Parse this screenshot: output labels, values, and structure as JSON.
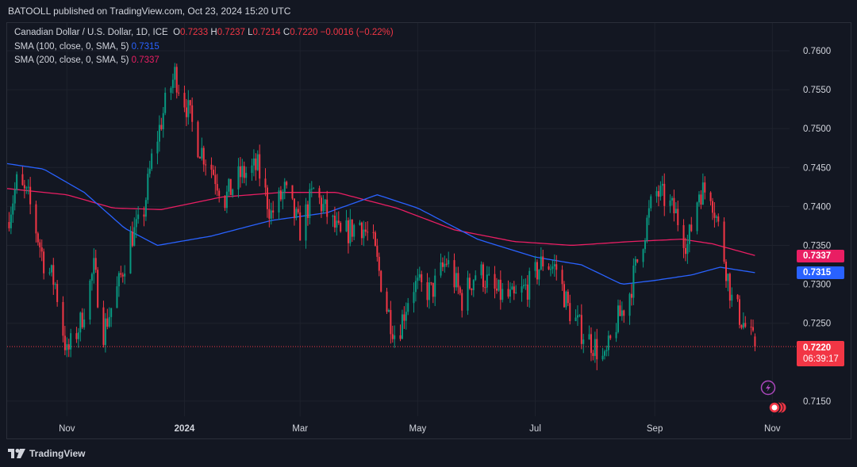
{
  "header": {
    "publisher": "BATOOLL published on TradingView.com, Oct 23, 2024 15:20 UTC"
  },
  "footer": {
    "brand": "TradingView"
  },
  "legend": {
    "symbol": "Canadian Dollar / U.S. Dollar, 1D, ICE",
    "o_label": "O",
    "o": "0.7233",
    "h_label": "H",
    "h": "0.7237",
    "l_label": "L",
    "l": "0.7214",
    "c_label": "C",
    "c": "0.7220",
    "change": "−0.0016 (−0.22%)",
    "sma100_label": "SMA (100, close, 0, SMA, 5)",
    "sma100_value": "0.7315",
    "sma200_label": "SMA (200, close, 0, SMA, 5)",
    "sma200_value": "0.7337"
  },
  "price_tags": {
    "sma200": "0.7337",
    "sma100": "0.7315",
    "last": "0.7220",
    "countdown": "06:39:17"
  },
  "colors": {
    "up": "#089981",
    "down": "#f23645",
    "sma100": "#2962ff",
    "sma200": "#e91e63",
    "background": "#131722",
    "grid": "#1e222d",
    "text": "#d1d4dc"
  },
  "chart_data": {
    "type": "candlestick",
    "title": "Canadian Dollar / U.S. Dollar, 1D, ICE",
    "x_ticks": [
      "Nov",
      "2024",
      "Mar",
      "May",
      "Jul",
      "Sep",
      "Nov"
    ],
    "y_ticks": [
      "0.7600",
      "0.7550",
      "0.7500",
      "0.7450",
      "0.7400",
      "0.7350",
      "0.7300",
      "0.7250",
      "0.7150"
    ],
    "ylim": [
      0.714,
      0.764
    ],
    "grid": true,
    "last_close": 0.722,
    "close_path": [
      {
        "d": "2023-10-01",
        "v": 0.738
      },
      {
        "d": "2023-10-06",
        "v": 0.743
      },
      {
        "d": "2023-10-12",
        "v": 0.741
      },
      {
        "d": "2023-10-20",
        "v": 0.733
      },
      {
        "d": "2023-10-26",
        "v": 0.73
      },
      {
        "d": "2023-11-01",
        "v": 0.721
      },
      {
        "d": "2023-11-08",
        "v": 0.725
      },
      {
        "d": "2023-11-15",
        "v": 0.732
      },
      {
        "d": "2023-11-20",
        "v": 0.724
      },
      {
        "d": "2023-11-28",
        "v": 0.73
      },
      {
        "d": "2023-12-04",
        "v": 0.736
      },
      {
        "d": "2023-12-10",
        "v": 0.738
      },
      {
        "d": "2023-12-15",
        "v": 0.746
      },
      {
        "d": "2023-12-22",
        "v": 0.753
      },
      {
        "d": "2023-12-27",
        "v": 0.757
      },
      {
        "d": "2024-01-02",
        "v": 0.753
      },
      {
        "d": "2024-01-08",
        "v": 0.748
      },
      {
        "d": "2024-01-15",
        "v": 0.745
      },
      {
        "d": "2024-01-22",
        "v": 0.741
      },
      {
        "d": "2024-01-30",
        "v": 0.744
      },
      {
        "d": "2024-02-08",
        "v": 0.745
      },
      {
        "d": "2024-02-15",
        "v": 0.739
      },
      {
        "d": "2024-02-22",
        "v": 0.742
      },
      {
        "d": "2024-03-01",
        "v": 0.737
      },
      {
        "d": "2024-03-08",
        "v": 0.742
      },
      {
        "d": "2024-03-15",
        "v": 0.739
      },
      {
        "d": "2024-03-22",
        "v": 0.736
      },
      {
        "d": "2024-04-01",
        "v": 0.738
      },
      {
        "d": "2024-04-08",
        "v": 0.735
      },
      {
        "d": "2024-04-15",
        "v": 0.727
      },
      {
        "d": "2024-04-20",
        "v": 0.723
      },
      {
        "d": "2024-04-28",
        "v": 0.73
      },
      {
        "d": "2024-05-08",
        "v": 0.729
      },
      {
        "d": "2024-05-16",
        "v": 0.733
      },
      {
        "d": "2024-05-24",
        "v": 0.728
      },
      {
        "d": "2024-06-01",
        "v": 0.732
      },
      {
        "d": "2024-06-10",
        "v": 0.729
      },
      {
        "d": "2024-06-20",
        "v": 0.728
      },
      {
        "d": "2024-06-28",
        "v": 0.73
      },
      {
        "d": "2024-07-05",
        "v": 0.733
      },
      {
        "d": "2024-07-12",
        "v": 0.732
      },
      {
        "d": "2024-07-18",
        "v": 0.727
      },
      {
        "d": "2024-07-25",
        "v": 0.724
      },
      {
        "d": "2024-08-01",
        "v": 0.722
      },
      {
        "d": "2024-08-06",
        "v": 0.72
      },
      {
        "d": "2024-08-12",
        "v": 0.725
      },
      {
        "d": "2024-08-18",
        "v": 0.728
      },
      {
        "d": "2024-08-26",
        "v": 0.736
      },
      {
        "d": "2024-09-01",
        "v": 0.742
      },
      {
        "d": "2024-09-06",
        "v": 0.741
      },
      {
        "d": "2024-09-12",
        "v": 0.739
      },
      {
        "d": "2024-09-18",
        "v": 0.735
      },
      {
        "d": "2024-09-24",
        "v": 0.742
      },
      {
        "d": "2024-09-30",
        "v": 0.742
      },
      {
        "d": "2024-10-06",
        "v": 0.735
      },
      {
        "d": "2024-10-11",
        "v": 0.728
      },
      {
        "d": "2024-10-17",
        "v": 0.725
      },
      {
        "d": "2024-10-23",
        "v": 0.722
      }
    ],
    "sma100_path": [
      {
        "d": "2023-10-01",
        "v": 0.7455
      },
      {
        "d": "2023-10-20",
        "v": 0.7448
      },
      {
        "d": "2023-11-10",
        "v": 0.7418
      },
      {
        "d": "2023-12-01",
        "v": 0.7372
      },
      {
        "d": "2023-12-18",
        "v": 0.735
      },
      {
        "d": "2024-01-15",
        "v": 0.7362
      },
      {
        "d": "2024-02-15",
        "v": 0.7382
      },
      {
        "d": "2024-03-15",
        "v": 0.7392
      },
      {
        "d": "2024-04-10",
        "v": 0.7415
      },
      {
        "d": "2024-05-01",
        "v": 0.7398
      },
      {
        "d": "2024-06-01",
        "v": 0.7358
      },
      {
        "d": "2024-07-01",
        "v": 0.7335
      },
      {
        "d": "2024-07-25",
        "v": 0.7325
      },
      {
        "d": "2024-08-15",
        "v": 0.73
      },
      {
        "d": "2024-09-01",
        "v": 0.7305
      },
      {
        "d": "2024-09-20",
        "v": 0.7312
      },
      {
        "d": "2024-10-05",
        "v": 0.7322
      },
      {
        "d": "2024-10-23",
        "v": 0.7315
      }
    ],
    "sma200_path": [
      {
        "d": "2023-10-01",
        "v": 0.7423
      },
      {
        "d": "2023-11-01",
        "v": 0.7415
      },
      {
        "d": "2023-11-25",
        "v": 0.7398
      },
      {
        "d": "2023-12-20",
        "v": 0.7396
      },
      {
        "d": "2024-01-20",
        "v": 0.7412
      },
      {
        "d": "2024-02-20",
        "v": 0.7418
      },
      {
        "d": "2024-03-20",
        "v": 0.7418
      },
      {
        "d": "2024-04-20",
        "v": 0.7398
      },
      {
        "d": "2024-05-20",
        "v": 0.737
      },
      {
        "d": "2024-06-20",
        "v": 0.7355
      },
      {
        "d": "2024-07-20",
        "v": 0.735
      },
      {
        "d": "2024-08-20",
        "v": 0.7355
      },
      {
        "d": "2024-09-15",
        "v": 0.7358
      },
      {
        "d": "2024-10-01",
        "v": 0.7352
      },
      {
        "d": "2024-10-23",
        "v": 0.7337
      }
    ]
  }
}
